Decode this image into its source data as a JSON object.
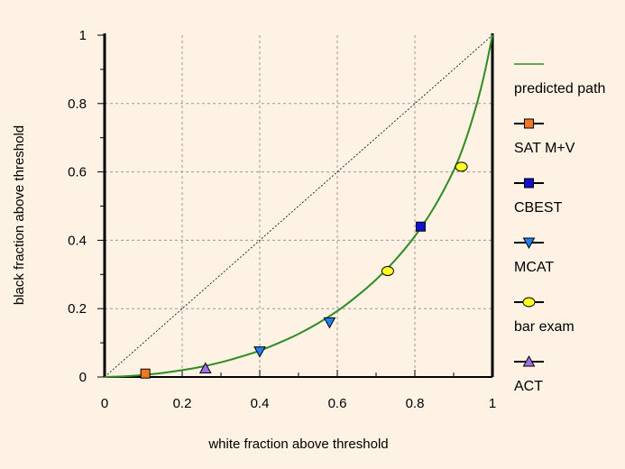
{
  "chart_data": {
    "type": "scatter",
    "xlabel": "white fraction above threshold",
    "ylabel": "black fraction above threshold",
    "xlim": [
      0,
      1
    ],
    "ylim": [
      0,
      1
    ],
    "xticks": [
      "0",
      "0.2",
      "0.4",
      "0.6",
      "0.8",
      "1"
    ],
    "yticks": [
      "0",
      "0.2",
      "0.4",
      "0.6",
      "0.8",
      "1"
    ],
    "grid": true,
    "legend_position": "right",
    "diagonal_reference": true,
    "series": [
      {
        "name": "predicted path",
        "kind": "line",
        "color": "#2e8b22",
        "x": [
          0,
          0.05,
          0.1,
          0.15,
          0.2,
          0.25,
          0.3,
          0.35,
          0.4,
          0.45,
          0.5,
          0.55,
          0.6,
          0.65,
          0.7,
          0.75,
          0.8,
          0.85,
          0.9,
          0.93,
          0.96,
          0.98,
          1.0
        ],
        "y": [
          0,
          0.002,
          0.006,
          0.012,
          0.02,
          0.03,
          0.043,
          0.059,
          0.077,
          0.1,
          0.126,
          0.157,
          0.193,
          0.236,
          0.285,
          0.343,
          0.412,
          0.497,
          0.604,
          0.69,
          0.8,
          0.89,
          1.0
        ]
      },
      {
        "name": "SAT M+V",
        "kind": "marker",
        "marker": "square",
        "color": "#f07820",
        "x": [
          0.105
        ],
        "y": [
          0.01
        ]
      },
      {
        "name": "CBEST",
        "kind": "marker",
        "marker": "square",
        "color": "#1010d0",
        "x": [
          0.815
        ],
        "y": [
          0.44
        ]
      },
      {
        "name": "MCAT",
        "kind": "marker",
        "marker": "triangle-down",
        "color": "#2080f0",
        "x": [
          0.4,
          0.58
        ],
        "y": [
          0.075,
          0.16
        ]
      },
      {
        "name": "bar exam",
        "kind": "marker",
        "marker": "circle",
        "color": "#ffff20",
        "x": [
          0.73,
          0.92
        ],
        "y": [
          0.31,
          0.615
        ]
      },
      {
        "name": "ACT",
        "kind": "marker",
        "marker": "triangle-up",
        "color": "#a070e0",
        "x": [
          0.26
        ],
        "y": [
          0.025
        ]
      }
    ]
  }
}
